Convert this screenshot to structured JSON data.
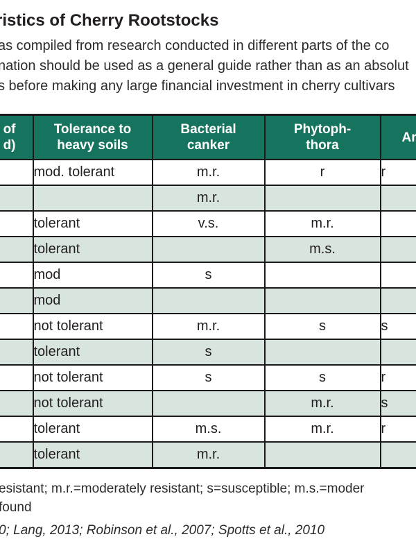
{
  "header": {
    "title": "ristics of Cherry Rootstocks",
    "intro_lines": [
      "as compiled from research conducted in different parts of the co",
      "nation should be used as a general guide rather than as an absolut",
      "s before making any large financial investment in cherry cultivars"
    ]
  },
  "table": {
    "headers": [
      {
        "lines": [
          "of",
          "d)"
        ]
      },
      {
        "lines": [
          "Tolerance to",
          "heavy soils"
        ]
      },
      {
        "lines": [
          "Bacterial",
          "canker"
        ]
      },
      {
        "lines": [
          "Phytoph-",
          "thora"
        ]
      },
      {
        "lines": [
          "Ar"
        ]
      }
    ],
    "rows": [
      [
        "",
        "mod. tolerant",
        "m.r.",
        "r",
        "r"
      ],
      [
        "",
        "",
        "m.r.",
        "",
        ""
      ],
      [
        "",
        "tolerant",
        "v.s.",
        "m.r.",
        ""
      ],
      [
        "",
        "tolerant",
        "",
        "m.s.",
        ""
      ],
      [
        "",
        "mod",
        "s",
        "",
        ""
      ],
      [
        "",
        "mod",
        "",
        "",
        ""
      ],
      [
        "",
        "not tolerant",
        "m.r.",
        "s",
        "s"
      ],
      [
        "",
        "tolerant",
        "s",
        "",
        ""
      ],
      [
        "",
        "not tolerant",
        "s",
        "s",
        "r"
      ],
      [
        "",
        "not tolerant",
        "",
        "m.r.",
        "s"
      ],
      [
        "",
        "tolerant",
        "m.s.",
        "m.r.",
        "r"
      ],
      [
        "",
        "tolerant",
        "m.r.",
        "",
        ""
      ]
    ]
  },
  "footnotes": {
    "legend_line": "esistant; m.r.=moderately resistant; s=susceptible; m.s.=moder",
    "blank_line": "found",
    "sources_line": "0; Lang, 2013; Robinson et al., 2007; Spotts et al., 2010"
  },
  "colors": {
    "header_green": "#16735d",
    "row_alt_green": "#d8e4de",
    "border_black": "#1a1a1a",
    "text": "#231f20"
  }
}
